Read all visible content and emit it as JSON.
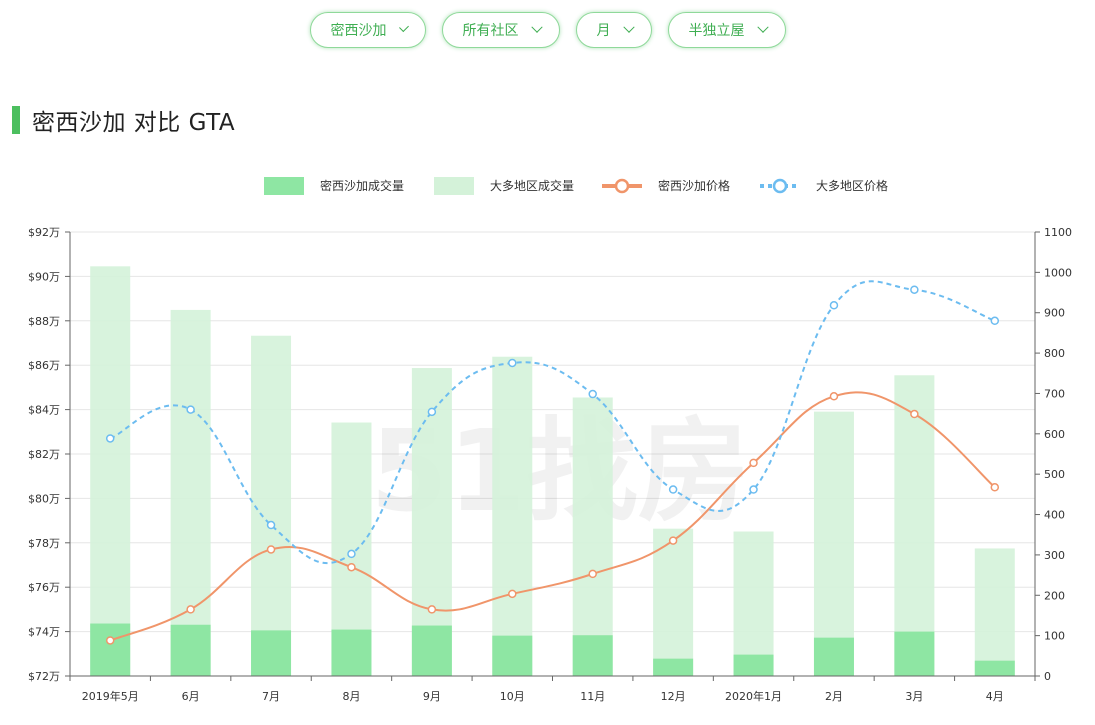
{
  "filters": [
    {
      "id": "filter-city",
      "label": "密西沙加"
    },
    {
      "id": "filter-community",
      "label": "所有社区"
    },
    {
      "id": "filter-period",
      "label": "月"
    },
    {
      "id": "filter-type",
      "label": "半独立屋"
    }
  ],
  "section": {
    "title": "密西沙加 对比 GTA"
  },
  "watermark": "51找房",
  "colors": {
    "accent": "#4cbf5f",
    "local_volume": "#8ee6a3",
    "gta_volume": "#d4f2d9",
    "local_price": "#f0956a",
    "gta_price": "#6cbcf0"
  },
  "chart_data": {
    "type": "bar",
    "categories": [
      "2019年5月",
      "6月",
      "7月",
      "8月",
      "9月",
      "10月",
      "11月",
      "12月",
      "2020年1月",
      "2月",
      "3月",
      "4月"
    ],
    "legend": [
      "密西沙加成交量",
      "大多地区成交量",
      "密西沙加价格",
      "大多地区价格"
    ],
    "y_left": {
      "ticks": [
        "$72万",
        "$74万",
        "$76万",
        "$78万",
        "$80万",
        "$82万",
        "$84万",
        "$86万",
        "$88万",
        "$90万",
        "$92万"
      ],
      "range": [
        72,
        92
      ],
      "unit": "万"
    },
    "y_right": {
      "ticks": [
        "0",
        "100",
        "200",
        "300",
        "400",
        "500",
        "600",
        "700",
        "800",
        "900",
        "1000",
        "1100"
      ],
      "range": [
        0,
        1100
      ]
    },
    "series": [
      {
        "name": "密西沙加成交量",
        "kind": "bar",
        "axis": "right",
        "values": [
          130,
          127,
          113,
          115,
          125,
          100,
          101,
          43,
          53,
          95,
          110,
          38
        ]
      },
      {
        "name": "大多地区成交量",
        "kind": "bar",
        "axis": "right",
        "values": [
          1015,
          907,
          843,
          628,
          763,
          791,
          690,
          365,
          358,
          655,
          745,
          316
        ]
      },
      {
        "name": "密西沙加价格",
        "kind": "line",
        "axis": "left",
        "values": [
          73.6,
          75.0,
          77.7,
          76.9,
          75.0,
          75.7,
          76.6,
          78.1,
          81.6,
          84.6,
          83.8,
          80.5
        ]
      },
      {
        "name": "大多地区价格",
        "kind": "line",
        "axis": "left",
        "dashed": true,
        "values": [
          82.7,
          84.0,
          78.8,
          77.5,
          83.9,
          86.1,
          84.7,
          80.4,
          80.4,
          88.7,
          89.4,
          88.0
        ]
      }
    ],
    "grid": true,
    "legend_position": "top-center"
  }
}
